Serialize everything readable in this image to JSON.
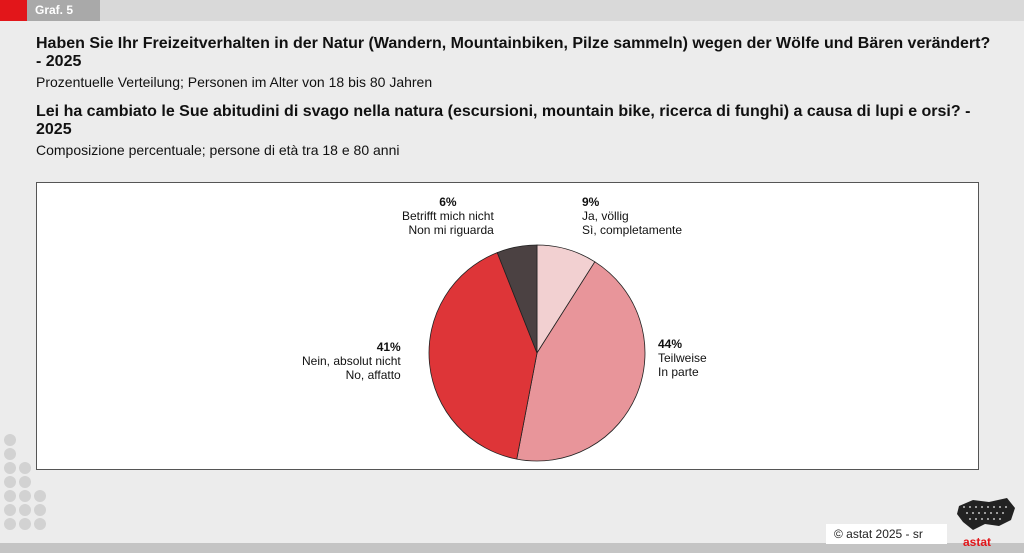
{
  "badge": "Graf. 5",
  "title_de": "Haben Sie Ihr Freizeitverhalten in der Natur (Wandern, Mountainbiken, Pilze sammeln) wegen der Wölfe und Bären verändert? - 2025",
  "subtitle_de": "Prozentuelle Verteilung; Personen im Alter von 18 bis 80 Jahren",
  "title_it": "Lei ha cambiato le Sue abitudini di svago nella natura (escursioni, mountain bike, ricerca di funghi) a causa di lupi e orsi? - 2025",
  "subtitle_it": "Composizione percentuale; persone di età tra 18 e 80 anni",
  "chart_data": {
    "type": "pie",
    "start_angle": "12 o'clock",
    "direction": "clockwise",
    "slices": [
      {
        "pct_label": "9%",
        "value": 9,
        "label_de": "Ja, völlig",
        "label_it": "Sì, completamente",
        "color": "#f2d0d1"
      },
      {
        "pct_label": "44%",
        "value": 44,
        "label_de": "Teilweise",
        "label_it": "In parte",
        "color": "#e8959a"
      },
      {
        "pct_label": "41%",
        "value": 41,
        "label_de": "Nein, absolut nicht",
        "label_it": "No, affatto",
        "color": "#de3538"
      },
      {
        "pct_label": "6%",
        "value": 6,
        "label_de": "Betrifft mich nicht",
        "label_it": "Non mi riguarda",
        "color": "#4b4142"
      }
    ]
  },
  "footer": {
    "copyright": "©  astat 2025 - sr",
    "logo_text": "astat"
  }
}
